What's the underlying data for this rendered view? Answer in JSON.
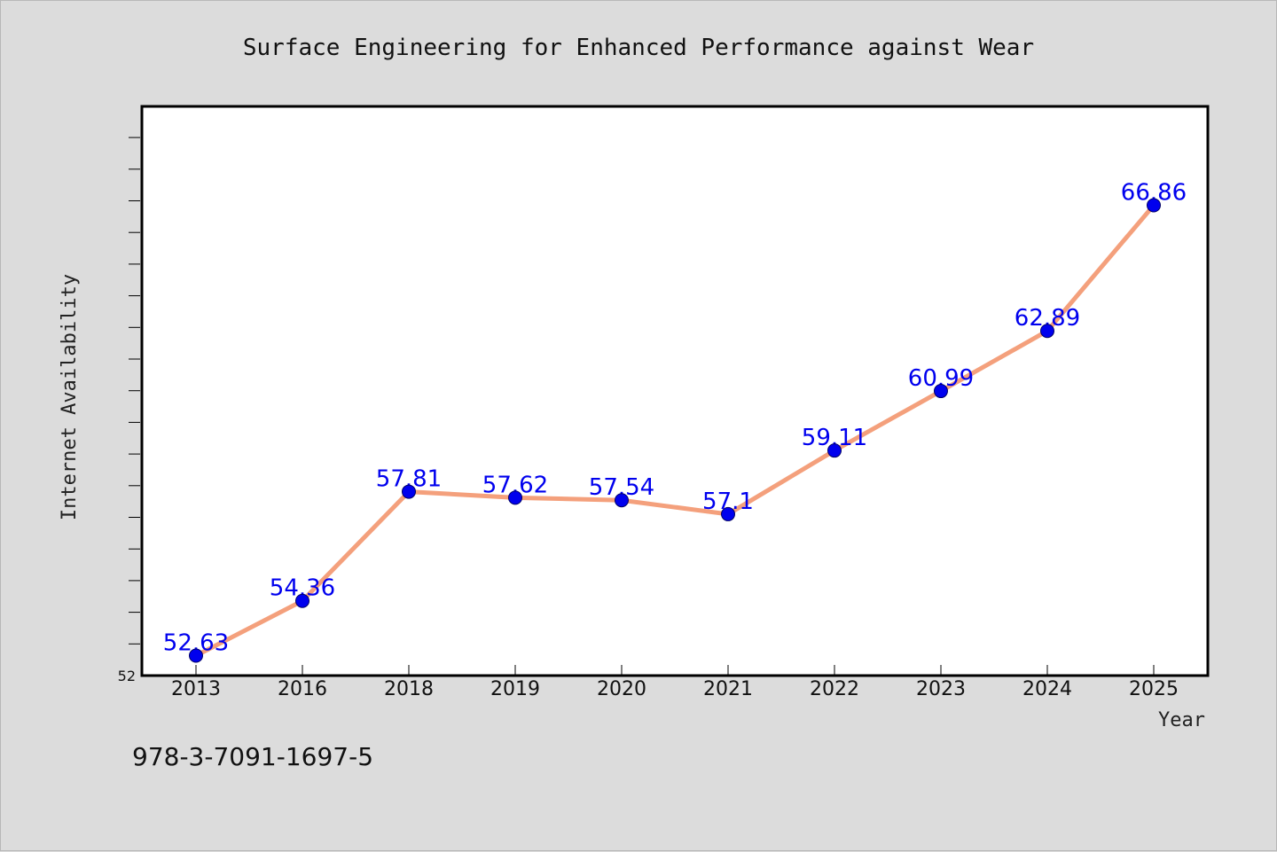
{
  "chart_data": {
    "type": "line",
    "title": "Surface Engineering for Enhanced Performance against Wear",
    "xlabel": "Year",
    "ylabel": "Internet Availability",
    "categories": [
      "2013",
      "2016",
      "2018",
      "2019",
      "2020",
      "2021",
      "2022",
      "2023",
      "2024",
      "2025"
    ],
    "series": [
      {
        "values": [
          52.63,
          54.36,
          57.81,
          57.62,
          57.54,
          57.1,
          59.11,
          60.99,
          62.89,
          66.86
        ],
        "data_labels": [
          "52.63",
          "54.36",
          "57.81",
          "57.62",
          "57.54",
          "57.1",
          "59.11",
          "60.99",
          "62.89",
          "66.86"
        ]
      }
    ],
    "ylim": [
      52,
      70
    ],
    "ytick_labels": [
      "52"
    ],
    "grid": false,
    "legend": "none",
    "footnote": "978-3-7091-1697-5",
    "colors": {
      "background": "#dcdcdc",
      "plot_background": "#ffffff",
      "line": "#f4a07c",
      "marker": "#0000ee",
      "data_label": "#0000ee"
    }
  }
}
